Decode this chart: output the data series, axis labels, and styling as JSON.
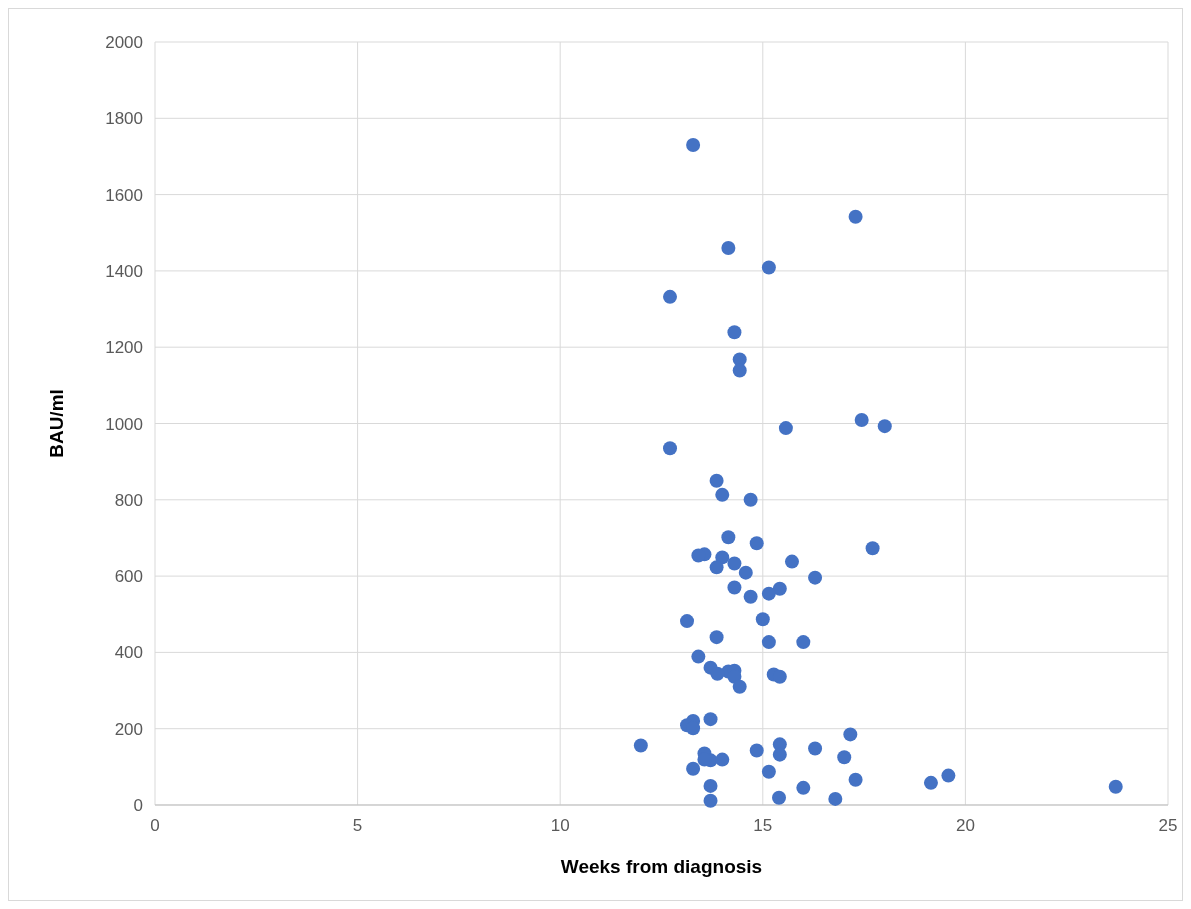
{
  "chart_data": {
    "type": "scatter",
    "xlabel": "Weeks from diagnosis",
    "ylabel": "BAU/ml",
    "xlim": [
      0,
      25
    ],
    "xticks": [
      0,
      5,
      10,
      15,
      20,
      25
    ],
    "ylim": [
      0,
      2000
    ],
    "yticks": [
      0,
      200,
      400,
      600,
      800,
      1000,
      1200,
      1400,
      1600,
      1800,
      2000
    ],
    "grid": true,
    "marker": "circle",
    "series": [
      {
        "color": "#4472c4",
        "x": [
          13.28,
          17.29,
          14.15,
          15.15,
          12.71,
          14.3,
          14.43,
          14.43,
          17.44,
          15.57,
          18.01,
          12.71,
          13.86,
          14.0,
          14.7,
          14.15,
          14.85,
          17.71,
          13.56,
          13.41,
          14.0,
          14.3,
          15.72,
          13.86,
          14.58,
          16.29,
          14.3,
          15.42,
          15.15,
          14.7,
          15.0,
          13.13,
          13.86,
          15.15,
          16.0,
          13.41,
          13.71,
          14.15,
          14.3,
          13.88,
          14.3,
          15.27,
          15.42,
          14.43,
          13.71,
          13.28,
          13.13,
          13.28,
          11.99,
          15.42,
          17.16,
          16.29,
          14.85,
          15.42,
          17.01,
          13.56,
          13.71,
          14.0,
          13.56,
          13.28,
          15.15,
          17.29,
          19.58,
          19.15,
          16.0,
          23.71,
          13.71,
          13.71,
          15.4,
          16.79
        ],
        "values": [
          1730,
          1542,
          1460,
          1409,
          1332,
          1239,
          1168,
          1139,
          1009,
          988,
          993,
          935,
          850,
          813,
          800,
          702,
          686,
          673,
          657,
          654,
          649,
          633,
          638,
          623,
          609,
          596,
          570,
          567,
          554,
          546,
          487,
          482,
          440,
          427,
          427,
          389,
          360,
          350,
          352,
          344,
          336,
          342,
          336,
          310,
          225,
          220,
          209,
          201,
          156,
          159,
          185,
          148,
          143,
          132,
          125,
          135,
          117,
          119,
          119,
          95,
          87,
          66,
          77,
          58,
          45,
          48,
          50,
          11,
          19,
          16
        ]
      }
    ]
  }
}
